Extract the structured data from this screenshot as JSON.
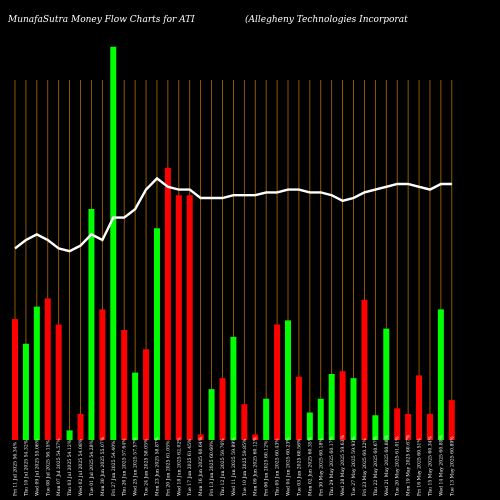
{
  "chart_data": {
    "type": "bar",
    "title_left": "MunafaSutra  Money Flow  Charts for ATI",
    "title_right": "(Allegheny Technologies Incorporat",
    "categories": [
      "Fri 11 Jul 2025 56.34%",
      "Thu 10 Jul 2025 54.32%",
      "Wed 09 Jul 2025 55.06%",
      "Tue 08 Jul 2025 56.15%",
      "Mon 07 Jul 2025 54.57%",
      "Thu 03 Jul 2025 54.12%",
      "Wed 02 Jul 2025 54.08%",
      "Tue 01 Jul 2025 54.28%",
      "Mon 30 Jun 2025 55.07%",
      "Fri 27 Jun 2025 54.40%",
      "Thu 26 Jun 2025 57.64%",
      "Wed 25 Jun 2025 57.57%",
      "Tue 24 Jun 2025 58.05%",
      "Mon 23 Jun 2025 58.87%",
      "Fri 20 Jun 2025 61.05%",
      "Wed 18 Jun 2025 62.02%",
      "Tue 17 Jun 2025 61.45%",
      "Mon 16 Jun 2025 60.64%",
      "Fri 13 Jun 2025 60.60%",
      "Thu 12 Jun 2025 59.76%",
      "Wed 11 Jun 2025 59.89%",
      "Tue 10 Jun 2025 59.85%",
      "Mon 09 Jun 2025 60.12%",
      "Fri 06 Jun 2025 60.12%",
      "Thu 05 Jun 2025 60.43%",
      "Wed 04 Jun 2025 60.23%",
      "Tue 03 Jun 2025 60.56%",
      "Mon 02 Jun 2025 60.35%",
      "Fri 30 May 2025 60.18%",
      "Thu 29 May 2025 60.17%",
      "Wed 28 May 2025 59.63%",
      "Tue 27 May 2025 59.93%",
      "Fri 23 May 2025 60.22%",
      "Thu 22 May 2025 60.67%",
      "Wed 21 May 2025 60.88%",
      "Tue 20 May 2025 61.01%",
      "Mon 19 May 2025 60.67%",
      "Fri 16 May 2025 60.51%",
      "Thu 15 May 2025 60.34%",
      "Wed 14 May 2025 60.89%",
      "Tue 13 May 2025 60.89%"
    ],
    "values": [
      88,
      70,
      97,
      103,
      84,
      7,
      19,
      168,
      95,
      286,
      80,
      49,
      66,
      154,
      198,
      178,
      178,
      4,
      37,
      45,
      75,
      26,
      4,
      30,
      84,
      87,
      46,
      20,
      30,
      48,
      50,
      45,
      102,
      18,
      81,
      23,
      19,
      47,
      19,
      95,
      29
    ],
    "colors": [
      "red",
      "green",
      "green",
      "red",
      "red",
      "green",
      "red",
      "green",
      "red",
      "green",
      "red",
      "green",
      "red",
      "green",
      "red",
      "red",
      "red",
      "red",
      "green",
      "red",
      "green",
      "red",
      "red",
      "green",
      "red",
      "green",
      "red",
      "green",
      "green",
      "green",
      "red",
      "green",
      "red",
      "green",
      "green",
      "red",
      "red",
      "red",
      "red",
      "green",
      "red"
    ],
    "line_values": [
      47,
      50,
      52,
      50,
      47,
      46,
      48,
      52,
      50,
      58,
      58,
      61,
      68,
      72,
      69,
      68,
      68,
      65,
      65,
      65,
      66,
      66,
      66,
      67,
      67,
      68,
      68,
      67,
      67,
      66,
      64,
      65,
      67,
      68,
      69,
      70,
      70,
      69,
      68,
      70,
      70
    ],
    "bar_colors": {
      "green": "#00ff00",
      "red": "#ff0000"
    },
    "grid_color": "#b36b00",
    "line_color": "#ffffff",
    "background": "#000000",
    "legend": "none",
    "grid": true
  }
}
